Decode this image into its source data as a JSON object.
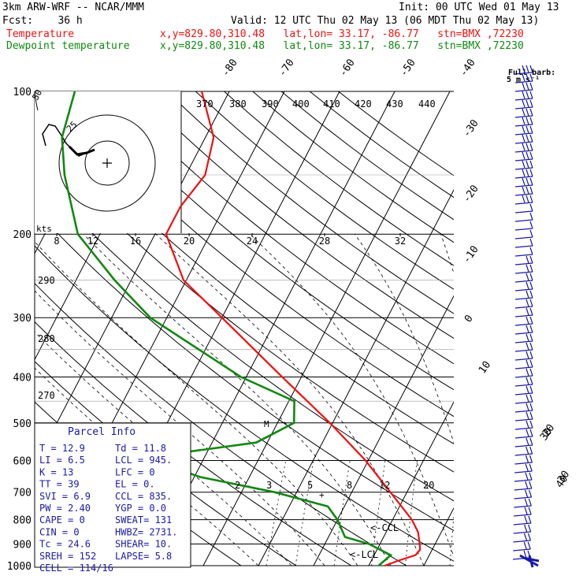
{
  "header": {
    "left1": "3km ARW-WRF -- NCAR/MMM",
    "right1": "Init: 00 UTC Wed 01 May 13",
    "left2": "Fcst:    36 h",
    "right2": "Valid: 12 UTC Thu 02 May 13 (06 MDT Thu 02 May 13)",
    "temp_label": "Temperature",
    "temp_loc": "x,y=829.80,310.48   lat,lon= 33.17, -86.77   stn=BMX ,72230",
    "dew_label": "Dewpoint temperature",
    "dew_loc": "x,y=829.80,310.48   lat,lon= 33.17, -86.77   stn=BMX ,72230",
    "barb_key_line1": "Full barb:",
    "barb_key_line2": "5 m s⁻¹"
  },
  "colors": {
    "temperature": "#ee1111",
    "dewpoint": "#118811",
    "barbs": "#1a1aa8",
    "parcel_text": "#1a1aa8",
    "axes": "#000000"
  },
  "chart_data": {
    "type": "skew-t",
    "pressure_levels": [
      100,
      200,
      300,
      400,
      500,
      600,
      700,
      800,
      900,
      1000
    ],
    "isotherm_labels": [
      "-80",
      "-70",
      "-60",
      "-50",
      "-40",
      "-30",
      "-20",
      "-10",
      "0",
      "10",
      "20",
      "30",
      "40"
    ],
    "theta_labels": [
      "370",
      "380",
      "390",
      "400",
      "410",
      "420",
      "430",
      "440",
      "290",
      "280",
      "270"
    ],
    "mixing_ratio_labels": [
      "2",
      "3",
      "5",
      "8",
      "12",
      "20"
    ],
    "hodograph": {
      "speed_labels": [
        "8",
        "12",
        "16",
        "20",
        "24",
        "28",
        "32"
      ],
      "ring_labels": [
        "25",
        "50"
      ],
      "units": "kts"
    },
    "temperature_profile": [
      {
        "p": 1000,
        "t": 12.9
      },
      {
        "p": 975,
        "t": 15.0
      },
      {
        "p": 950,
        "t": 17.5
      },
      {
        "p": 925,
        "t": 17.8
      },
      {
        "p": 900,
        "t": 17.2
      },
      {
        "p": 850,
        "t": 15.8
      },
      {
        "p": 800,
        "t": 13.5
      },
      {
        "p": 700,
        "t": 7.0
      },
      {
        "p": 600,
        "t": -0.5
      },
      {
        "p": 500,
        "t": -10.5
      },
      {
        "p": 400,
        "t": -23.5
      },
      {
        "p": 300,
        "t": -40.0
      },
      {
        "p": 250,
        "t": -50.5
      },
      {
        "p": 200,
        "t": -58.0
      },
      {
        "p": 175,
        "t": -58.0
      },
      {
        "p": 150,
        "t": -56.5
      },
      {
        "p": 125,
        "t": -58.5
      },
      {
        "p": 100,
        "t": -65.0
      }
    ],
    "dewpoint_profile": [
      {
        "p": 1000,
        "td": 11.8
      },
      {
        "p": 950,
        "td": 13.0
      },
      {
        "p": 900,
        "td": 8.0
      },
      {
        "p": 870,
        "td": 3.0
      },
      {
        "p": 800,
        "td": 0.0
      },
      {
        "p": 750,
        "td": -3.0
      },
      {
        "p": 700,
        "td": -14.0
      },
      {
        "p": 650,
        "td": -29.0
      },
      {
        "p": 600,
        "td": -39.0
      },
      {
        "p": 590,
        "td": -40.0
      },
      {
        "p": 550,
        "td": -22.0
      },
      {
        "p": 500,
        "td": -17.0
      },
      {
        "p": 450,
        "td": -19.0
      },
      {
        "p": 400,
        "td": -31.0
      },
      {
        "p": 300,
        "td": -53.0
      },
      {
        "p": 250,
        "td": -63.0
      },
      {
        "p": 200,
        "td": -74.0
      },
      {
        "p": 150,
        "td": -82.0
      },
      {
        "p": 125,
        "td": -86.0
      },
      {
        "p": 100,
        "td": -88.0
      }
    ],
    "annotations": {
      "ccl": "<-CCL",
      "lcl": "<-LCL",
      "parcel_markers": [
        "M",
        "+"
      ]
    },
    "wind_axis_labels": [
      "30",
      "40"
    ],
    "parcel_info": {
      "title": "Parcel Info",
      "rows": [
        {
          "left": "T   =   12.9",
          "right": "Td =  11.8"
        },
        {
          "left": "LI  =    6.5",
          "right": "LCL =  945."
        },
        {
          "left": "K   =     13",
          "right": "LFC =     0"
        },
        {
          "left": "TT  =     39",
          "right": "EL  =    0."
        },
        {
          "left": "SVI =    6.9",
          "right": "CCL =  835."
        },
        {
          "left": "PW  =   2.40",
          "right": "YGP =   0.0"
        },
        {
          "left": "CAPE =     0",
          "right": "SWEAT=  131"
        },
        {
          "left": "CIN =      0",
          "right": "HWBZ= 2731."
        },
        {
          "left": "Tc  =   24.6",
          "right": "SHEAR=  10."
        },
        {
          "left": "SREH =   152",
          "right": "LAPSE=   5.8"
        },
        {
          "left": "CELL = 114/16",
          "right": ""
        }
      ]
    }
  }
}
